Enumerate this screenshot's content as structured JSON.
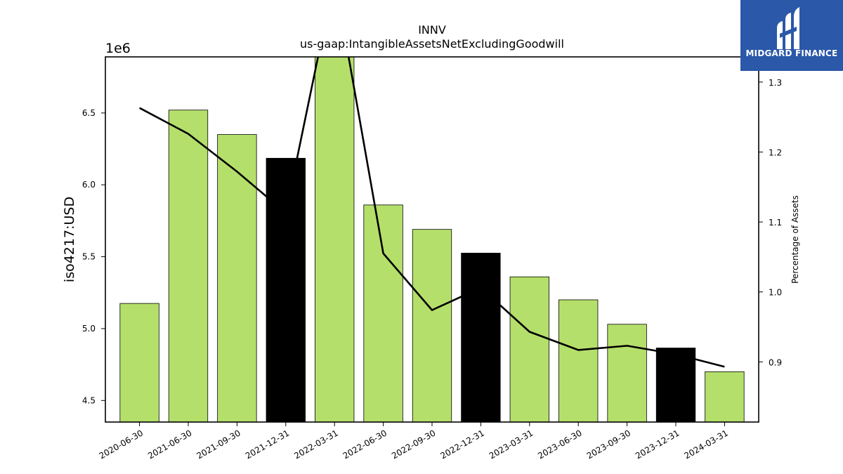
{
  "chart_data": {
    "type": "bar",
    "title": "INNV",
    "subtitle": "us-gaap:IntangibleAssetsNetExcludingGoodwill",
    "ylabel": "iso4217:USD",
    "y_offset_label": "1e6",
    "y2label": "Percentage of Assets",
    "categories": [
      "2020-06-30",
      "2021-06-30",
      "2021-09-30",
      "2021-12-31",
      "2022-03-31",
      "2022-06-30",
      "2022-09-30",
      "2022-12-31",
      "2023-03-31",
      "2023-06-30",
      "2023-09-30",
      "2023-12-31",
      "2024-03-31"
    ],
    "values": [
      5175000,
      6520000,
      6350000,
      6185000,
      6900000,
      5860000,
      5690000,
      5525000,
      5360000,
      5200000,
      5030000,
      4865000,
      4700000
    ],
    "bar_colors": [
      "#b5df6b",
      "#b5df6b",
      "#b5df6b",
      "#000000",
      "#b5df6b",
      "#b5df6b",
      "#b5df6b",
      "#000000",
      "#b5df6b",
      "#b5df6b",
      "#b5df6b",
      "#000000",
      "#b5df6b"
    ],
    "ylim": [
      4350000,
      6890000
    ],
    "yticks": [
      4500000,
      5000000,
      5500000,
      6000000,
      6500000
    ],
    "ytick_labels": [
      "4.5",
      "5.0",
      "5.5",
      "6.0",
      "6.5"
    ],
    "line_series": {
      "name": "Percentage of Assets",
      "values": [
        1.263,
        1.226,
        1.172,
        1.113,
        1.45,
        1.055,
        0.974,
        1.006,
        0.943,
        0.917,
        0.923,
        0.911,
        0.893
      ]
    },
    "y2lim": [
      0.814,
      1.336
    ],
    "y2ticks": [
      0.9,
      1.0,
      1.1,
      1.2,
      1.3
    ],
    "y2tick_labels": [
      "0.9",
      "1.0",
      "1.1",
      "1.2",
      "1.3"
    ],
    "grid": false
  },
  "logo": {
    "text": "MIDGARD FINANCE",
    "bg_color": "#2b58a8"
  }
}
